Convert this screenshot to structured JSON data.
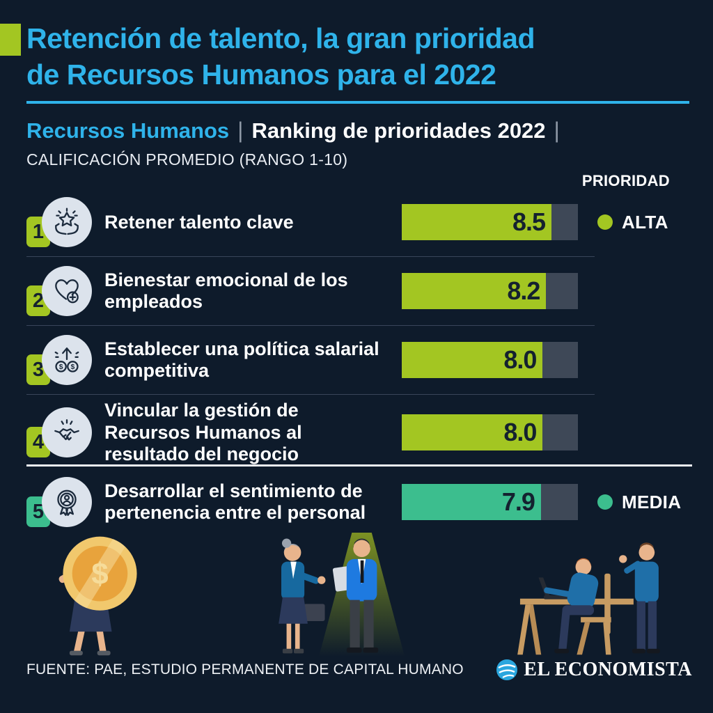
{
  "colors": {
    "background": "#0e1b2b",
    "title_cyan": "#2fb3ea",
    "accent_green": "#a3c622",
    "accent_teal": "#3cbe8e",
    "bar_track_gray": "#3e4857",
    "icon_circle": "#dce3ec",
    "value_text": "#14212f"
  },
  "header": {
    "title_lines": [
      "Retención de talento, la gran prioridad",
      "de Recursos Humanos para el 2022"
    ]
  },
  "subtitle": {
    "category": "Recursos Humanos",
    "separator": "|",
    "ranking": "Ranking de prioridades 2022",
    "trailing_separator": "|"
  },
  "qualifier": "CALIFICACIÓN PROMEDIO (RANGO 1-10)",
  "priority_header": "PRIORIDAD",
  "rows": [
    {
      "rank": "1",
      "label": "Retener talento clave",
      "value": "8.5",
      "priority": "ALTA",
      "icon": "hands-holding-star-icon"
    },
    {
      "rank": "2",
      "label": "Bienestar emocional de los empleados",
      "value": "8.2",
      "priority": "ALTA",
      "icon": "heart-health-icon"
    },
    {
      "rank": "3",
      "label": "Establecer una política salarial competitiva",
      "value": "8.0",
      "priority": "ALTA",
      "icon": "salary-growth-icon"
    },
    {
      "rank": "4",
      "label": "Vincular la gestión de Recursos Humanos al resultado del negocio",
      "value": "8.0",
      "priority": "ALTA",
      "icon": "handshake-icon"
    },
    {
      "rank": "5",
      "label": "Desarrollar el sentimiento de pertenencia entre el personal",
      "value": "7.9",
      "priority": "MEDIA",
      "icon": "badge-person-icon"
    }
  ],
  "legend": {
    "alta": {
      "label": "ALTA",
      "color": "#a3c622"
    },
    "media": {
      "label": "MEDIA",
      "color": "#3cbe8e"
    }
  },
  "chart_data": {
    "type": "bar",
    "orientation": "horizontal",
    "title": "Ranking de prioridades 2022",
    "subtitle": "Calificación promedio (rango 1-10)",
    "categories": [
      "Retener talento clave",
      "Bienestar emocional de los empleados",
      "Establecer una política salarial competitiva",
      "Vincular la gestión de Recursos Humanos al resultado del negocio",
      "Desarrollar el sentimiento de pertenencia entre el personal"
    ],
    "values": [
      8.5,
      8.2,
      8.0,
      8.0,
      7.9
    ],
    "axis_max": 10,
    "value_range": [
      1,
      10
    ],
    "priorities": [
      "ALTA",
      "ALTA",
      "ALTA",
      "ALTA",
      "MEDIA"
    ],
    "bar_colors": [
      "#a3c622",
      "#a3c622",
      "#a3c622",
      "#a3c622",
      "#3cbe8e"
    ],
    "legend_entries": [
      "ALTA",
      "MEDIA"
    ],
    "legend_position": "right",
    "grid": false
  },
  "illustrations": [
    "person-carrying-coin",
    "business-people-under-spotlight",
    "colleagues-working-at-desk"
  ],
  "footer": {
    "source": "FUENTE: PAE, ESTUDIO PERMANENTE DE CAPITAL HUMANO",
    "brand": "EL ECONOMISTA"
  }
}
